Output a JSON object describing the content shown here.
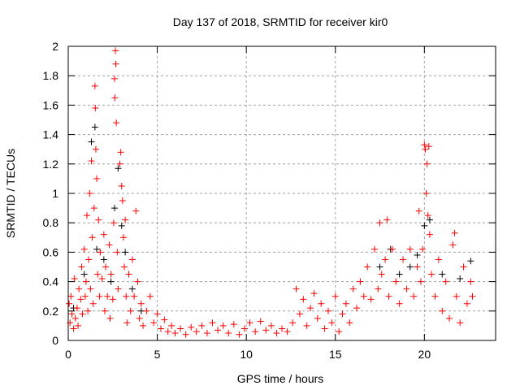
{
  "chart_data": {
    "type": "scatter",
    "title": "Day 137 of 2018, SRMTID for receiver kir0",
    "xlabel": "GPS time / hours",
    "ylabel": "SRMTID / TECUs",
    "xlim": [
      0,
      24
    ],
    "ylim": [
      0,
      2
    ],
    "xticks": [
      "0",
      "5",
      "10",
      "15",
      "20"
    ],
    "yticks": [
      "0",
      "0.2",
      "0.4",
      "0.6",
      "0.8",
      "1",
      "1.2",
      "1.4",
      "1.6",
      "1.8",
      "2"
    ],
    "grid": true,
    "legend": "none",
    "series": [
      {
        "name": "black",
        "color": "#000000",
        "points": [
          [
            0.3,
            0.22
          ],
          [
            0.9,
            0.45
          ],
          [
            1.3,
            1.35
          ],
          [
            1.5,
            1.45
          ],
          [
            1.6,
            0.62
          ],
          [
            2.0,
            0.55
          ],
          [
            2.4,
            0.4
          ],
          [
            2.6,
            0.9
          ],
          [
            2.8,
            1.17
          ],
          [
            3.0,
            0.78
          ],
          [
            3.2,
            0.6
          ],
          [
            3.6,
            0.35
          ],
          [
            4.1,
            0.2
          ],
          [
            17.5,
            0.5
          ],
          [
            18.1,
            0.62
          ],
          [
            18.6,
            0.45
          ],
          [
            19.2,
            0.5
          ],
          [
            19.6,
            0.58
          ],
          [
            20.0,
            0.78
          ],
          [
            20.3,
            0.82
          ],
          [
            21.0,
            0.45
          ],
          [
            22.0,
            0.42
          ],
          [
            22.6,
            0.54
          ]
        ]
      },
      {
        "name": "red",
        "color": "#ff0000",
        "points": [
          [
            0.05,
            0.25
          ],
          [
            0.1,
            0.12
          ],
          [
            0.15,
            0.3
          ],
          [
            0.2,
            0.18
          ],
          [
            0.3,
            0.08
          ],
          [
            0.35,
            0.42
          ],
          [
            0.4,
            0.15
          ],
          [
            0.5,
            0.22
          ],
          [
            0.55,
            0.1
          ],
          [
            0.6,
            0.35
          ],
          [
            0.7,
            0.28
          ],
          [
            0.75,
            0.5
          ],
          [
            0.8,
            0.18
          ],
          [
            0.9,
            0.62
          ],
          [
            0.95,
            0.3
          ],
          [
            1.0,
            0.4
          ],
          [
            1.05,
            0.85
          ],
          [
            1.1,
            0.2
          ],
          [
            1.15,
            0.55
          ],
          [
            1.2,
            1.0
          ],
          [
            1.25,
            0.35
          ],
          [
            1.3,
            1.22
          ],
          [
            1.35,
            0.7
          ],
          [
            1.4,
            0.25
          ],
          [
            1.45,
            0.9
          ],
          [
            1.5,
            1.73
          ],
          [
            1.52,
            1.58
          ],
          [
            1.55,
            1.3
          ],
          [
            1.6,
            1.1
          ],
          [
            1.65,
            0.45
          ],
          [
            1.7,
            0.82
          ],
          [
            1.75,
            0.3
          ],
          [
            1.8,
            0.6
          ],
          [
            1.9,
            0.42
          ],
          [
            2.0,
            0.72
          ],
          [
            2.05,
            0.2
          ],
          [
            2.1,
            0.5
          ],
          [
            2.2,
            0.3
          ],
          [
            2.3,
            0.65
          ],
          [
            2.35,
            0.15
          ],
          [
            2.4,
            0.45
          ],
          [
            2.5,
            0.28
          ],
          [
            2.55,
            0.8
          ],
          [
            2.6,
            1.78
          ],
          [
            2.62,
            1.65
          ],
          [
            2.65,
            1.97
          ],
          [
            2.67,
            1.88
          ],
          [
            2.7,
            1.48
          ],
          [
            2.75,
            0.6
          ],
          [
            2.8,
            0.35
          ],
          [
            2.9,
            1.2
          ],
          [
            2.95,
            1.28
          ],
          [
            3.0,
            1.05
          ],
          [
            3.05,
            0.95
          ],
          [
            3.1,
            0.7
          ],
          [
            3.15,
            0.5
          ],
          [
            3.2,
            0.82
          ],
          [
            3.25,
            0.3
          ],
          [
            3.3,
            0.12
          ],
          [
            3.4,
            0.45
          ],
          [
            3.5,
            0.2
          ],
          [
            3.6,
            0.55
          ],
          [
            3.7,
            0.3
          ],
          [
            3.8,
            0.88
          ],
          [
            3.9,
            0.4
          ],
          [
            4.0,
            0.15
          ],
          [
            4.1,
            0.25
          ],
          [
            4.2,
            0.1
          ],
          [
            4.4,
            0.2
          ],
          [
            4.6,
            0.3
          ],
          [
            4.8,
            0.12
          ],
          [
            5.0,
            0.18
          ],
          [
            5.2,
            0.08
          ],
          [
            5.4,
            0.14
          ],
          [
            5.6,
            0.06
          ],
          [
            5.8,
            0.1
          ],
          [
            6.0,
            0.05
          ],
          [
            6.3,
            0.08
          ],
          [
            6.6,
            0.04
          ],
          [
            6.9,
            0.09
          ],
          [
            7.2,
            0.06
          ],
          [
            7.5,
            0.1
          ],
          [
            7.8,
            0.05
          ],
          [
            8.1,
            0.12
          ],
          [
            8.4,
            0.07
          ],
          [
            8.7,
            0.1
          ],
          [
            9.0,
            0.05
          ],
          [
            9.3,
            0.11
          ],
          [
            9.6,
            0.04
          ],
          [
            9.9,
            0.08
          ],
          [
            10.2,
            0.12
          ],
          [
            10.5,
            0.06
          ],
          [
            10.8,
            0.13
          ],
          [
            11.1,
            0.07
          ],
          [
            11.4,
            0.1
          ],
          [
            11.7,
            0.05
          ],
          [
            12.0,
            0.08
          ],
          [
            12.3,
            0.06
          ],
          [
            12.6,
            0.12
          ],
          [
            12.8,
            0.35
          ],
          [
            13.0,
            0.18
          ],
          [
            13.2,
            0.28
          ],
          [
            13.4,
            0.1
          ],
          [
            13.6,
            0.22
          ],
          [
            13.8,
            0.32
          ],
          [
            14.0,
            0.15
          ],
          [
            14.2,
            0.25
          ],
          [
            14.4,
            0.08
          ],
          [
            14.6,
            0.2
          ],
          [
            14.8,
            0.12
          ],
          [
            15.0,
            0.3
          ],
          [
            15.2,
            0.06
          ],
          [
            15.4,
            0.18
          ],
          [
            15.6,
            0.25
          ],
          [
            15.8,
            0.12
          ],
          [
            16.0,
            0.35
          ],
          [
            16.2,
            0.22
          ],
          [
            16.4,
            0.4
          ],
          [
            16.6,
            0.3
          ],
          [
            16.8,
            0.5
          ],
          [
            17.0,
            0.28
          ],
          [
            17.2,
            0.62
          ],
          [
            17.4,
            0.35
          ],
          [
            17.5,
            0.8
          ],
          [
            17.6,
            0.45
          ],
          [
            17.8,
            0.55
          ],
          [
            17.9,
            0.82
          ],
          [
            18.0,
            0.3
          ],
          [
            18.2,
            0.62
          ],
          [
            18.4,
            0.4
          ],
          [
            18.6,
            0.25
          ],
          [
            18.8,
            0.55
          ],
          [
            19.0,
            0.35
          ],
          [
            19.2,
            0.62
          ],
          [
            19.4,
            0.3
          ],
          [
            19.6,
            0.5
          ],
          [
            19.7,
            0.88
          ],
          [
            19.8,
            0.4
          ],
          [
            19.9,
            0.62
          ],
          [
            20.0,
            1.33
          ],
          [
            20.05,
            1.3
          ],
          [
            20.1,
            1.0
          ],
          [
            20.15,
            1.2
          ],
          [
            20.2,
            0.85
          ],
          [
            20.25,
            1.32
          ],
          [
            20.3,
            0.72
          ],
          [
            20.4,
            0.45
          ],
          [
            20.6,
            0.3
          ],
          [
            20.8,
            0.55
          ],
          [
            21.0,
            0.2
          ],
          [
            21.2,
            0.4
          ],
          [
            21.4,
            0.15
          ],
          [
            21.6,
            0.65
          ],
          [
            21.7,
            0.73
          ],
          [
            21.8,
            0.3
          ],
          [
            22.0,
            0.12
          ],
          [
            22.2,
            0.5
          ],
          [
            22.4,
            0.25
          ],
          [
            22.6,
            0.4
          ],
          [
            22.7,
            0.3
          ]
        ]
      }
    ]
  }
}
